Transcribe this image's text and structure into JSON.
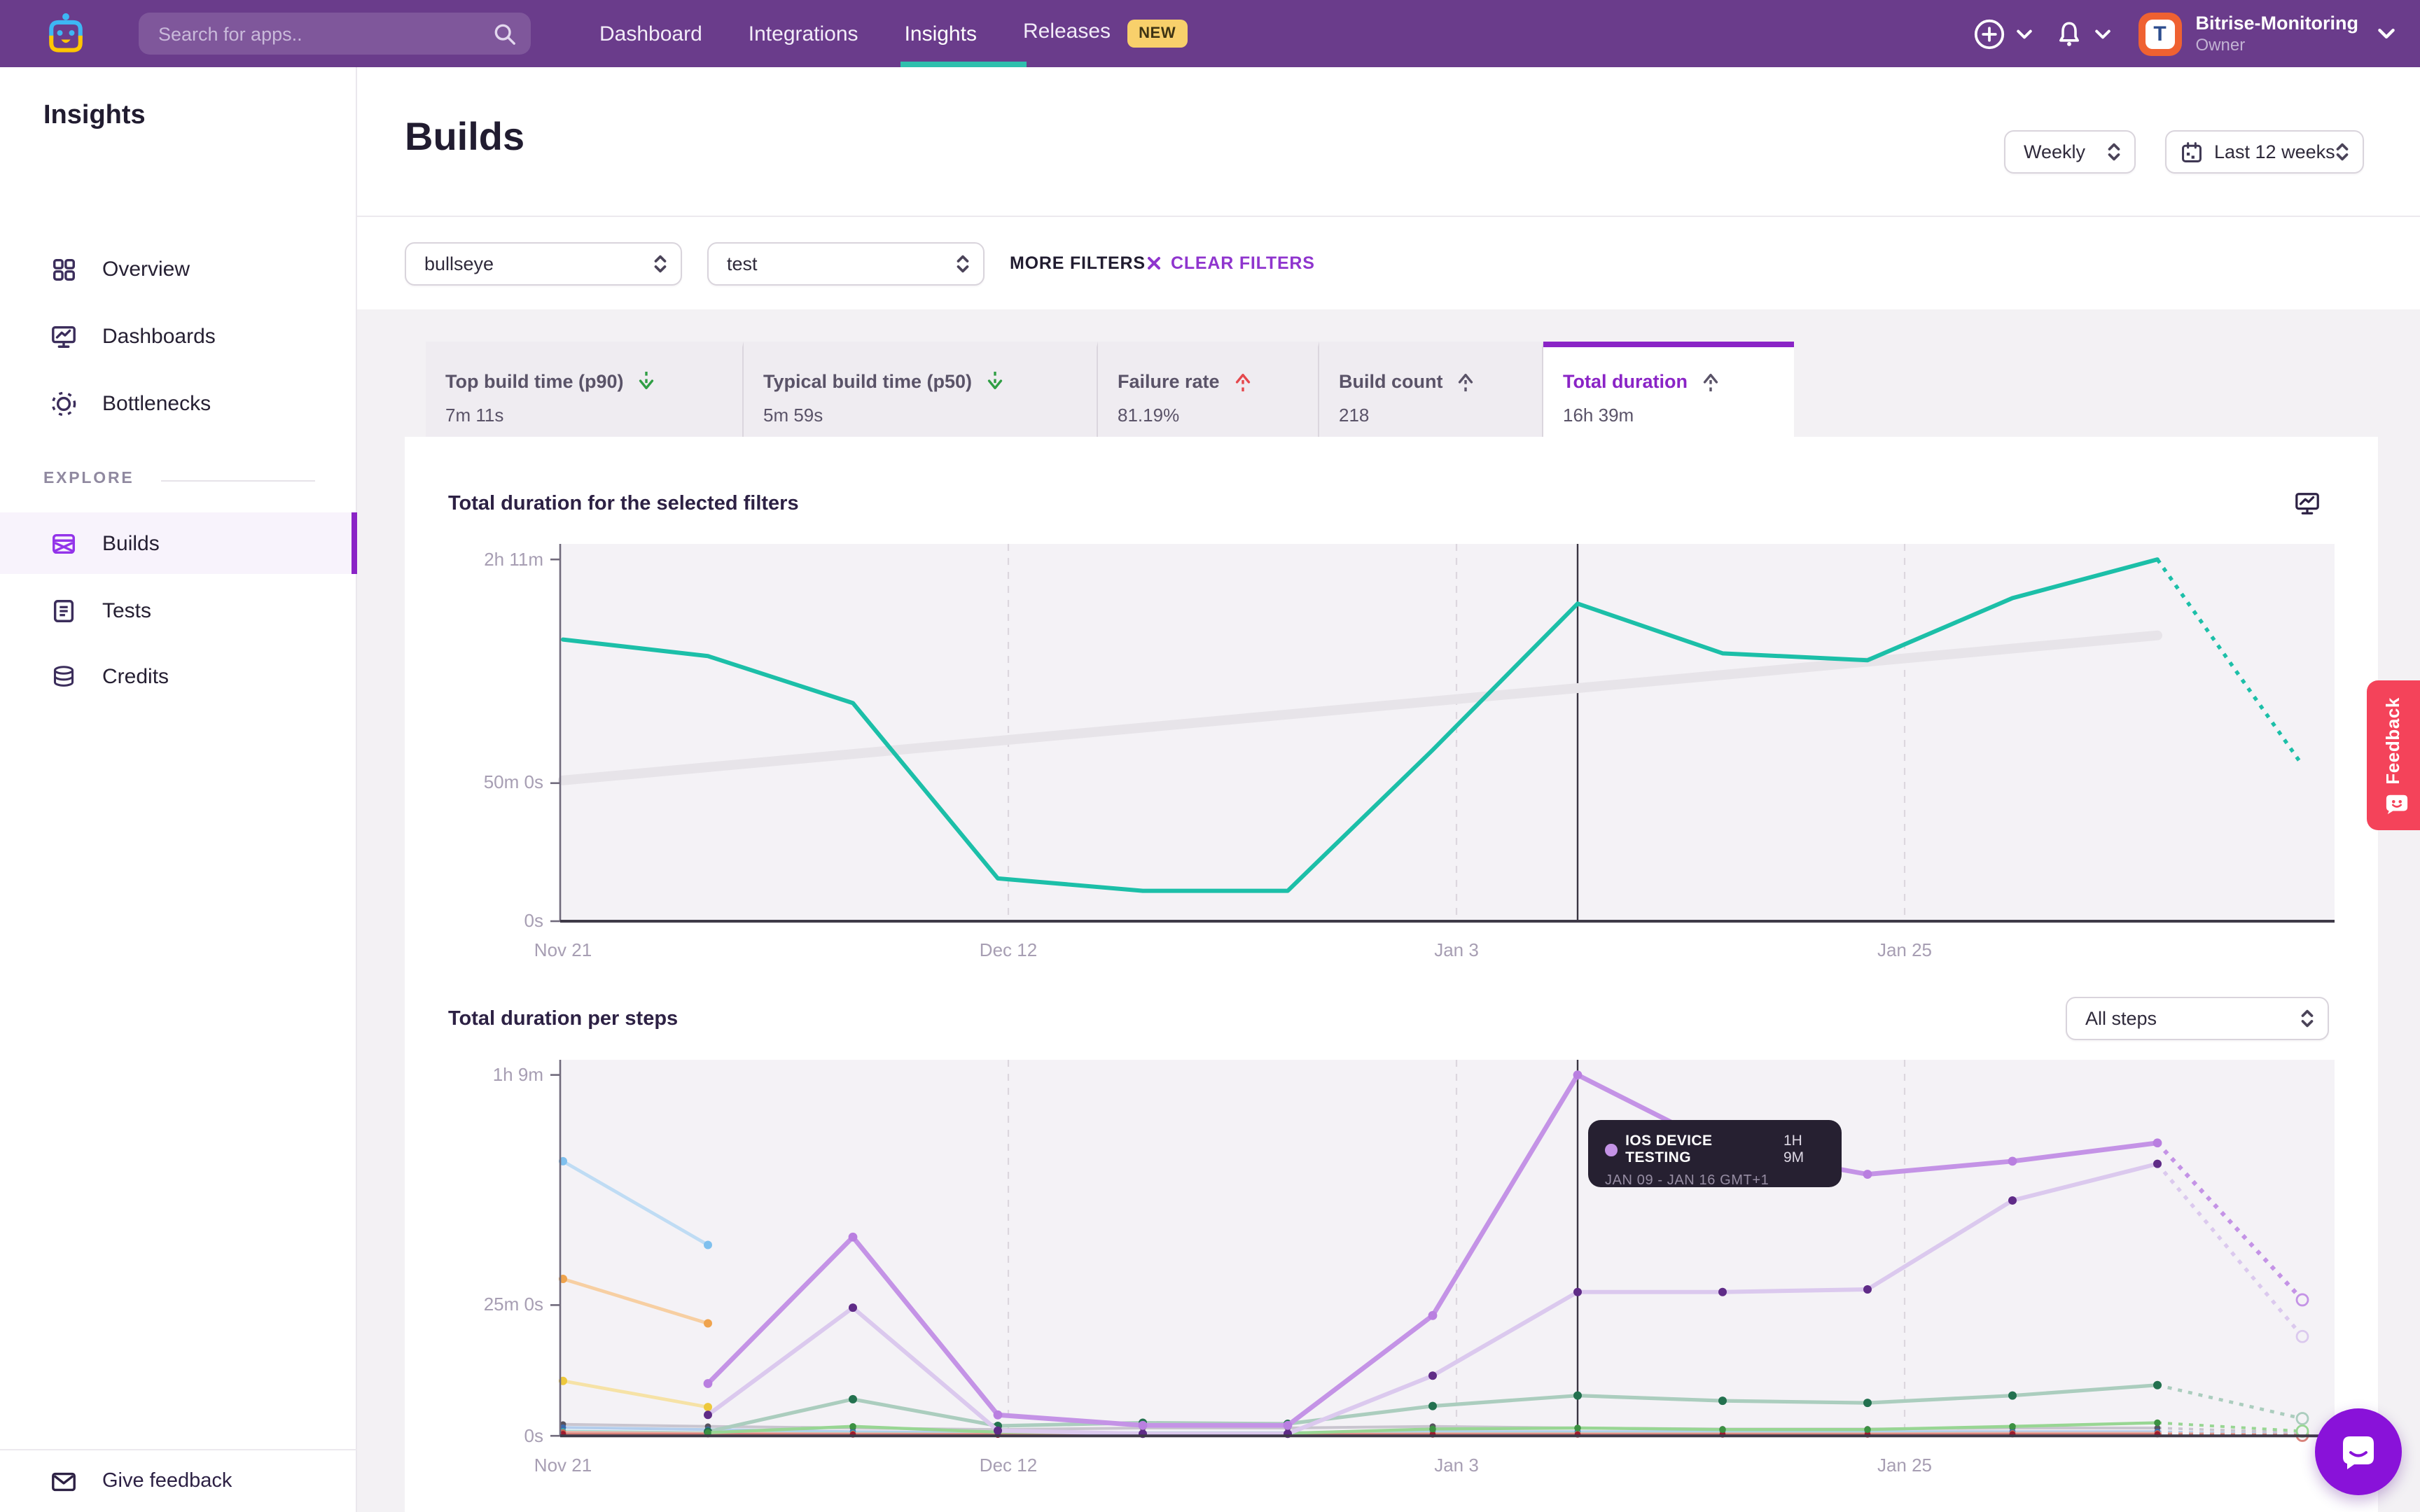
{
  "nav": {
    "search_placeholder": "Search for apps..",
    "items": [
      {
        "label": "Dashboard",
        "active": false
      },
      {
        "label": "Integrations",
        "active": false
      },
      {
        "label": "Insights",
        "active": true
      },
      {
        "label": "Releases",
        "active": false
      }
    ],
    "new_badge": "NEW",
    "account": {
      "name": "Bitrise-Monitoring",
      "role": "Owner"
    }
  },
  "sidebar": {
    "title": "Insights",
    "items": [
      {
        "label": "Overview"
      },
      {
        "label": "Dashboards"
      },
      {
        "label": "Bottlenecks"
      }
    ],
    "explore_label": "EXPLORE",
    "explore_items": [
      {
        "label": "Builds",
        "active": true
      },
      {
        "label": "Tests",
        "active": false
      },
      {
        "label": "Credits",
        "active": false
      }
    ],
    "footer": "Give feedback"
  },
  "header": {
    "title": "Builds",
    "period": "Weekly",
    "range": "Last 12 weeks"
  },
  "filters": {
    "app": "bullseye",
    "workflow": "test",
    "more": "MORE FILTERS",
    "clear": "CLEAR FILTERS"
  },
  "metrics": {
    "tabs": [
      {
        "label": "Top build time (p90)",
        "value": "7m 11s",
        "trend": "down",
        "trend_color": "#2F9E44",
        "selected": false
      },
      {
        "label": "Typical build time (p50)",
        "value": "5m 59s",
        "trend": "down",
        "trend_color": "#2F9E44",
        "selected": false
      },
      {
        "label": "Failure rate",
        "value": "81.19%",
        "trend": "up",
        "trend_color": "#E5484D",
        "selected": false
      },
      {
        "label": "Build count",
        "value": "218",
        "trend": "up",
        "trend_color": "#5A5368",
        "selected": false
      },
      {
        "label": "Total duration",
        "value": "16h 39m",
        "trend": "up",
        "trend_color": "#5A5368",
        "selected": true
      }
    ]
  },
  "tooltip": {
    "series": "IOS DEVICE TESTING",
    "value": "1H 9M",
    "range": "JAN 09 - JAN 16 GMT+1"
  },
  "feedback_tab": "Feedback",
  "colors": {
    "nav_purple": "#6A3C8B",
    "teal_underline": "#2FBFAD",
    "accent_purple": "#8A24C6",
    "feedback_red": "#F4435A",
    "chat_purple": "#8912D9",
    "new_badge_bg": "#F8D06B",
    "avatar_orange": "#EF6131",
    "trend_good_green": "#2F9E44",
    "trend_bad_red": "#E5484D"
  },
  "chart_data": [
    {
      "type": "line",
      "title": "Total duration for the selected filters",
      "unit": "minutes",
      "granularity": "weekly, last 12 weeks (final point partial, dotted)",
      "ylim": [
        0,
        131
      ],
      "y_ticks": [
        {
          "minutes": 131,
          "label": "2h 11m"
        },
        {
          "minutes": 50,
          "label": "50m 0s"
        },
        {
          "minutes": 0,
          "label": "0s"
        }
      ],
      "x_ticks": [
        {
          "index": 0,
          "label": "Nov 21",
          "grid": false
        },
        {
          "index": 3,
          "label": "Dec 12",
          "grid": true
        },
        {
          "index": 6,
          "label": "Jan 3",
          "grid": true
        },
        {
          "index": 9,
          "label": "Jan 25",
          "grid": true
        }
      ],
      "selected_index": 7,
      "series": [
        {
          "id": "total-duration",
          "color": "#1CBFA8",
          "width": 3,
          "values": [
            102,
            96,
            79,
            15.5,
            11,
            11,
            62,
            115,
            97,
            94.5,
            117,
            131
          ],
          "dotted_end": 56.5,
          "end_circle": false
        }
      ],
      "trend_line": {
        "from_minutes": 51,
        "to_minutes": 103.5,
        "color": "#E7E4E9"
      }
    },
    {
      "type": "line",
      "title": "Total duration per steps",
      "dropdown": "All steps",
      "unit": "minutes",
      "ylim": [
        0,
        72
      ],
      "y_ticks": [
        {
          "minutes": 69,
          "label": "1h 9m"
        },
        {
          "minutes": 25,
          "label": "25m 0s"
        },
        {
          "minutes": 0,
          "label": "0s"
        }
      ],
      "x_ticks": [
        {
          "index": 0,
          "label": "Nov 21",
          "grid": false
        },
        {
          "index": 3,
          "label": "Dec 12",
          "grid": true
        },
        {
          "index": 6,
          "label": "Jan 3",
          "grid": true
        },
        {
          "index": 9,
          "label": "Jan 25",
          "grid": true
        }
      ],
      "selected_index": 7,
      "series": [
        {
          "id": "step-light-blue",
          "color": "#BFDCF4",
          "dot_color": "#7FC0EE",
          "width": 2.4,
          "dot_r": 3,
          "values": [
            52.5,
            36.5,
            null,
            null,
            null,
            null,
            null,
            null,
            null,
            null,
            null,
            null
          ],
          "dotted_end": null,
          "end_circle": false
        },
        {
          "id": "step-orange",
          "color": "#F7CFA2",
          "dot_color": "#EFA34D",
          "width": 2.4,
          "dot_r": 3,
          "values": [
            30,
            21.5,
            null,
            null,
            null,
            null,
            null,
            null,
            null,
            null,
            null,
            null
          ],
          "dotted_end": null,
          "end_circle": false
        },
        {
          "id": "step-yellow",
          "color": "#F6E2A6",
          "dot_color": "#EDC83C",
          "width": 2.4,
          "dot_r": 3,
          "values": [
            10.5,
            5.5,
            null,
            null,
            null,
            null,
            null,
            null,
            null,
            null,
            null,
            null
          ],
          "dotted_end": null,
          "end_circle": false
        },
        {
          "id": "step-gray",
          "color": "#C9C5CF",
          "dot_color": "#57525F",
          "width": 2,
          "dot_r": 2.2,
          "values": [
            2.2,
            1.8,
            1.5,
            1.2,
            1.5,
            1.5,
            1.8,
            1.5,
            1.3,
            1.3,
            1.5,
            1.5
          ],
          "dotted_end": 0.6,
          "end_circle": true
        },
        {
          "id": "step-blue",
          "color": "#B3CDEC",
          "dot_color": "#3B69AE",
          "width": 2,
          "dot_r": 2.2,
          "values": [
            1.6,
            1.2,
            0.8,
            0.6,
            0.6,
            0.6,
            0.8,
            0.8,
            0.8,
            0.8,
            0.8,
            0.8
          ],
          "dotted_end": 0.3,
          "end_circle": false
        },
        {
          "id": "step-cyan",
          "color": "#9FE0DA",
          "dot_color": "#2FB9AE",
          "width": 2,
          "dot_r": 2.2,
          "values": [
            0.9,
            0.6,
            0.5,
            0.4,
            0.4,
            0.4,
            0.5,
            0.5,
            0.5,
            0.5,
            0.5,
            0.5
          ],
          "dotted_end": 0.2,
          "end_circle": false
        },
        {
          "id": "step-salmon",
          "color": "#E8B3A8",
          "dot_color": "#C96A55",
          "width": 2,
          "dot_r": 2.2,
          "values": [
            0.7,
            0.5,
            0.4,
            0.3,
            0.3,
            0.3,
            0.4,
            0.4,
            0.4,
            0.4,
            0.5,
            0.5
          ],
          "dotted_end": 0.2,
          "end_circle": true
        },
        {
          "id": "step-red",
          "color": "#D9837B",
          "dot_color": "#9E1B2E",
          "width": 2,
          "dot_r": 2.2,
          "values": [
            0.35,
            0.3,
            0.25,
            0.2,
            0.2,
            0.2,
            0.25,
            0.25,
            0.25,
            0.25,
            0.3,
            0.3
          ],
          "dotted_end": 0.1,
          "end_circle": true
        },
        {
          "id": "step-muted-green",
          "color": "#ABCDBE",
          "dot_color": "#23714F",
          "width": 2.6,
          "dot_r": 3,
          "values": [
            null,
            0.8,
            7,
            1.9,
            2.5,
            2.3,
            5.7,
            7.7,
            6.7,
            6.3,
            7.7,
            9.7
          ],
          "dotted_end": 3.3,
          "end_circle": true
        },
        {
          "id": "step-bright-green",
          "color": "#98D693",
          "dot_color": "#3C9142",
          "width": 2.2,
          "dot_r": 2.4,
          "values": [
            null,
            0.6,
            1.8,
            0.7,
            0.5,
            0.5,
            1.3,
            1.5,
            1.2,
            1.2,
            1.8,
            2.5
          ],
          "dotted_end": 0.9,
          "end_circle": true
        },
        {
          "id": "step-pale-purple",
          "color": "#DBC9EE",
          "dot_color": "#5F2B87",
          "width": 3,
          "dot_r": 3,
          "values": [
            null,
            4,
            24.5,
            1,
            0.4,
            0.4,
            11.5,
            27.5,
            27.5,
            28,
            45,
            52
          ],
          "dotted_end": 19,
          "end_circle": true
        },
        {
          "id": "ios-device-testing",
          "name": "IOS DEVICE TESTING",
          "color": "#C493E6",
          "dot_color": "#B97FE0",
          "width": 3.4,
          "dot_r": 3.2,
          "values": [
            null,
            10,
            38,
            4,
            2,
            2,
            23,
            69,
            55,
            50,
            52.5,
            56
          ],
          "dotted_end": 26,
          "end_circle": true
        }
      ]
    }
  ]
}
